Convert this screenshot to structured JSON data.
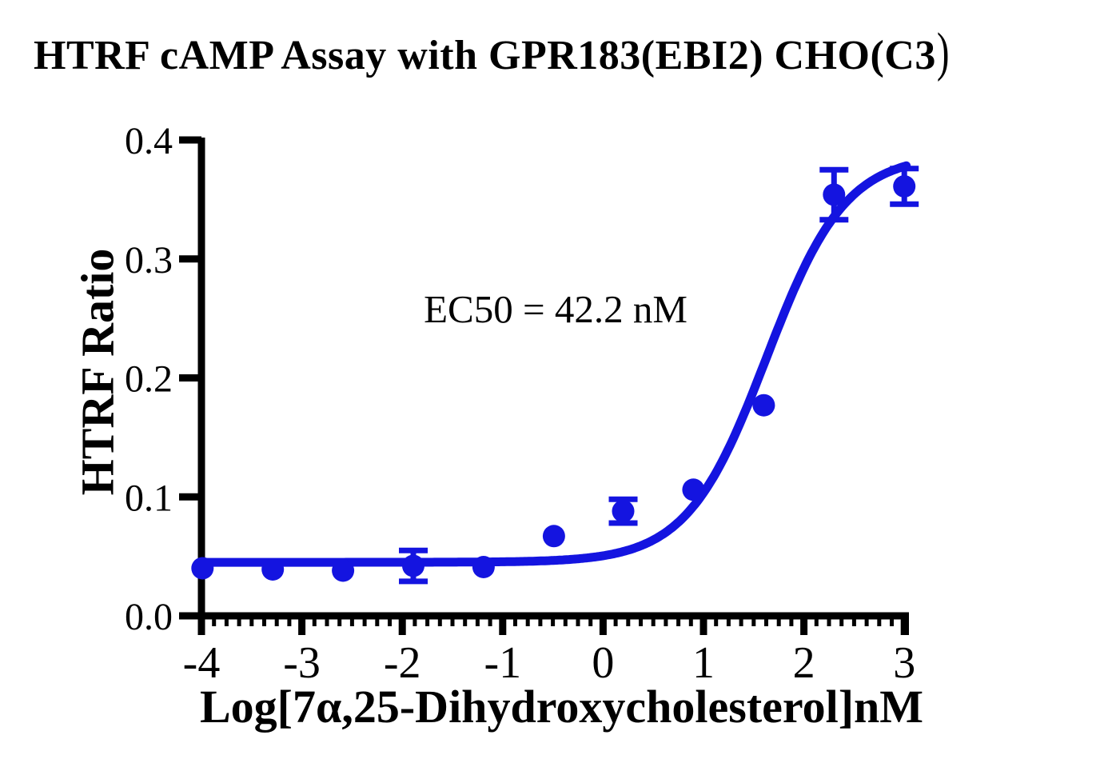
{
  "title": {
    "text": "HTRF cAMP Assay with GPR183(EBI2) CHO(C3",
    "closing_paren": ")"
  },
  "chart_data": {
    "type": "scatter",
    "title": "HTRF cAMP Assay with GPR183(EBI2) CHO(C3)",
    "xlabel": "Log[7α,25-Dihydroxycholesterol]nM",
    "ylabel": "HTRF Ratio",
    "annotation": "EC50 = 42.2 nM",
    "xlim": [
      -4,
      3
    ],
    "ylim": [
      0.0,
      0.4
    ],
    "grid": false,
    "legend": "none",
    "x_ticks": [
      {
        "value": -4,
        "label": "-4"
      },
      {
        "value": -3,
        "label": "-3"
      },
      {
        "value": -2,
        "label": "-2"
      },
      {
        "value": -1,
        "label": "-1"
      },
      {
        "value": 0,
        "label": "0"
      },
      {
        "value": 1,
        "label": "1"
      },
      {
        "value": 2,
        "label": "2"
      },
      {
        "value": 3,
        "label": "3"
      }
    ],
    "x_minor_tick_step": 0.125,
    "y_ticks": [
      {
        "value": 0.0,
        "label": "0.0"
      },
      {
        "value": 0.1,
        "label": "0.1"
      },
      {
        "value": 0.2,
        "label": "0.2"
      },
      {
        "value": 0.3,
        "label": "0.3"
      },
      {
        "value": 0.4,
        "label": "0.4"
      }
    ],
    "points": [
      {
        "x": -3.99,
        "y": 0.04,
        "err": null
      },
      {
        "x": -3.29,
        "y": 0.039,
        "err": null
      },
      {
        "x": -2.59,
        "y": 0.038,
        "err": null
      },
      {
        "x": -1.89,
        "y": 0.042,
        "err": 0.013
      },
      {
        "x": -1.19,
        "y": 0.041,
        "err": null
      },
      {
        "x": -0.49,
        "y": 0.067,
        "err": null
      },
      {
        "x": 0.2,
        "y": 0.088,
        "err": 0.01
      },
      {
        "x": 0.9,
        "y": 0.106,
        "err": null
      },
      {
        "x": 1.6,
        "y": 0.177,
        "err": null
      },
      {
        "x": 2.3,
        "y": 0.354,
        "err": 0.021
      },
      {
        "x": 3.0,
        "y": 0.361,
        "err": 0.015
      }
    ],
    "fit_curve": {
      "model": "4PL sigmoidal dose-response",
      "bottom": 0.045,
      "top": 0.388,
      "hill_slope": 1.1,
      "log_ec50": 1.625,
      "ec50_nM": 42.2
    },
    "colors": {
      "series": "#1414E0",
      "axis": "#000000",
      "background": "#FFFFFF"
    }
  }
}
